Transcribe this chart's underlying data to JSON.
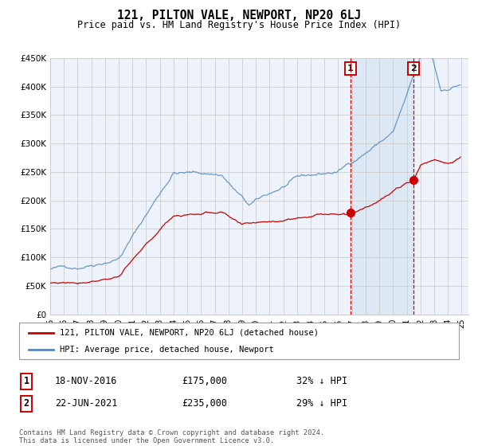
{
  "title": "121, PILTON VALE, NEWPORT, NP20 6LJ",
  "subtitle": "Price paid vs. HM Land Registry's House Price Index (HPI)",
  "ylim": [
    0,
    450000
  ],
  "yticks": [
    0,
    50000,
    100000,
    150000,
    200000,
    250000,
    300000,
    350000,
    400000,
    450000
  ],
  "ytick_labels": [
    "£0",
    "£50K",
    "£100K",
    "£150K",
    "£200K",
    "£250K",
    "£300K",
    "£350K",
    "£400K",
    "£450K"
  ],
  "background_color": "#ffffff",
  "plot_background": "#eef2fa",
  "grid_color": "#cccccc",
  "hpi_color": "#5588bb",
  "price_color": "#cc0000",
  "shade_color": "#dde8f5",
  "annotation1_date": "18-NOV-2016",
  "annotation1_price": 175000,
  "annotation1_hpi_pct": "32% ↓ HPI",
  "annotation1_year": 2016.88,
  "annotation2_date": "22-JUN-2021",
  "annotation2_price": 235000,
  "annotation2_hpi_pct": "29% ↓ HPI",
  "annotation2_year": 2021.47,
  "legend_label1": "121, PILTON VALE, NEWPORT, NP20 6LJ (detached house)",
  "legend_label2": "HPI: Average price, detached house, Newport",
  "footer": "Contains HM Land Registry data © Crown copyright and database right 2024.\nThis data is licensed under the Open Government Licence v3.0.",
  "xmin": 1995.0,
  "xmax": 2025.5
}
